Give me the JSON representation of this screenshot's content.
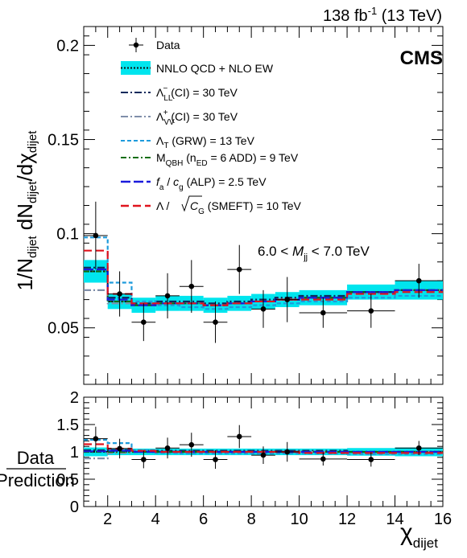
{
  "header": {
    "lumi_prefix": "138 fb",
    "lumi_exp": "-1",
    "lumi_suffix": " (13 TeV)",
    "experiment": "CMS"
  },
  "chart_data": [
    {
      "panel": "main",
      "type": "line",
      "ylabel_parts": [
        "1/N",
        "dijet",
        " dN",
        "dijet",
        "/dχ",
        "dijet"
      ],
      "ylim": [
        0.02,
        0.21
      ],
      "yticks": [
        0.05,
        0.1,
        0.15,
        0.2
      ],
      "ytick_labels": [
        "0.05",
        "0.1",
        "0.15",
        "0.2"
      ],
      "xlim": [
        1,
        16
      ],
      "bins": [
        [
          1,
          2
        ],
        [
          2,
          3
        ],
        [
          3,
          4
        ],
        [
          4,
          5
        ],
        [
          5,
          6
        ],
        [
          6,
          7
        ],
        [
          7,
          8
        ],
        [
          8,
          9
        ],
        [
          9,
          10
        ],
        [
          10,
          12
        ],
        [
          12,
          14
        ],
        [
          14,
          16
        ]
      ],
      "annotation": "6.0 < M jj < 7.0 TeV",
      "data": {
        "name": "Data",
        "x": [
          1.5,
          2.5,
          3.5,
          4.5,
          5.5,
          6.5,
          7.5,
          8.5,
          9.5,
          11,
          13,
          15
        ],
        "y": [
          0.099,
          0.068,
          0.053,
          0.067,
          0.072,
          0.053,
          0.081,
          0.06,
          0.065,
          0.058,
          0.059,
          0.075
        ],
        "yerr": [
          0.018,
          0.012,
          0.01,
          0.012,
          0.014,
          0.011,
          0.013,
          0.01,
          0.012,
          0.008,
          0.009,
          0.009
        ]
      },
      "prediction": {
        "name": "NNLO QCD + NLO EW",
        "values": [
          0.08,
          0.064,
          0.062,
          0.063,
          0.063,
          0.062,
          0.063,
          0.064,
          0.065,
          0.066,
          0.069,
          0.07
        ],
        "band": [
          0.006,
          0.004,
          0.004,
          0.004,
          0.004,
          0.004,
          0.004,
          0.004,
          0.004,
          0.004,
          0.004,
          0.005
        ]
      },
      "signals": [
        {
          "name": "Λ LL − (CI) = 30 TeV",
          "color": "#0b2a5c",
          "dash": "9,3,2,3",
          "values": [
            0.082,
            0.066,
            0.063,
            0.064,
            0.064,
            0.063,
            0.064,
            0.065,
            0.066,
            0.067,
            0.069,
            0.07
          ]
        },
        {
          "name": "Λ VV + (CI) = 30 TeV",
          "color": "#7f8ea9",
          "dash": "9,3,2,3",
          "values": [
            0.07,
            0.063,
            0.062,
            0.063,
            0.063,
            0.062,
            0.063,
            0.064,
            0.065,
            0.066,
            0.068,
            0.07
          ]
        },
        {
          "name": "Λ T (GRW) = 13 TeV",
          "color": "#1e9bdc",
          "dash": "5,3",
          "values": [
            0.098,
            0.074,
            0.064,
            0.062,
            0.061,
            0.06,
            0.061,
            0.062,
            0.063,
            0.064,
            0.066,
            0.067
          ]
        },
        {
          "name": "M QBH (n ED = 6 ADD) = 9 TeV",
          "color": "#0e6e0e",
          "dash": "7,3,2,3",
          "values": [
            0.08,
            0.064,
            0.062,
            0.063,
            0.063,
            0.062,
            0.063,
            0.064,
            0.065,
            0.066,
            0.069,
            0.07
          ]
        },
        {
          "name": "f a / c g (ALP) = 2.5 TeV",
          "color": "#1a1adc",
          "dash": "12,4",
          "values": [
            0.081,
            0.065,
            0.062,
            0.063,
            0.063,
            0.062,
            0.063,
            0.064,
            0.065,
            0.066,
            0.069,
            0.07
          ]
        },
        {
          "name": "Λ / √C G (SMEFT) = 10 TeV",
          "color": "#e0141e",
          "dash": "10,5",
          "values": [
            0.091,
            0.068,
            0.063,
            0.063,
            0.063,
            0.062,
            0.063,
            0.064,
            0.065,
            0.065,
            0.068,
            0.069
          ]
        }
      ],
      "legend_position": "top-left"
    },
    {
      "panel": "ratio",
      "type": "line",
      "ylabel_top": "Data",
      "ylabel_bottom": "Prediction",
      "xlabel": "χ",
      "xlabel_sub": "dijet",
      "ylim": [
        0,
        2
      ],
      "yticks": [
        0,
        0.5,
        1,
        1.5,
        2
      ],
      "ytick_labels": [
        "0",
        "0.5",
        "1",
        "1.5",
        "2"
      ],
      "xlim": [
        1,
        16
      ],
      "xticks": [
        2,
        4,
        6,
        8,
        10,
        12,
        14,
        16
      ],
      "xtick_labels": [
        "2",
        "4",
        "6",
        "8",
        "10",
        "12",
        "14",
        "16"
      ],
      "data_ratio": {
        "y": [
          1.24,
          1.06,
          0.86,
          1.07,
          1.13,
          0.86,
          1.28,
          0.94,
          1.0,
          0.87,
          0.86,
          1.07
        ],
        "yerr": [
          0.22,
          0.18,
          0.16,
          0.19,
          0.22,
          0.17,
          0.21,
          0.16,
          0.18,
          0.12,
          0.13,
          0.13
        ]
      },
      "prediction_band": [
        0.08,
        0.06,
        0.06,
        0.06,
        0.06,
        0.06,
        0.06,
        0.06,
        0.06,
        0.06,
        0.07,
        0.08
      ],
      "signal_ratios": [
        [
          1.03,
          1.03,
          1.02,
          1.02,
          1.02,
          1.02,
          1.02,
          1.02,
          1.02,
          1.02,
          1.0,
          1.0
        ],
        [
          0.88,
          0.98,
          1.0,
          1.0,
          1.0,
          1.0,
          1.0,
          1.0,
          1.0,
          1.0,
          0.99,
          1.0
        ],
        [
          1.22,
          1.16,
          1.03,
          0.98,
          0.97,
          0.97,
          0.97,
          0.97,
          0.97,
          0.97,
          0.96,
          0.96
        ],
        [
          1.0,
          1.0,
          1.0,
          1.0,
          1.0,
          1.0,
          1.0,
          1.0,
          1.0,
          1.0,
          1.0,
          1.0
        ],
        [
          1.01,
          1.02,
          1.0,
          1.0,
          1.0,
          1.0,
          1.0,
          1.0,
          1.0,
          1.0,
          1.0,
          1.0
        ],
        [
          1.14,
          1.06,
          1.02,
          1.0,
          1.0,
          1.0,
          1.0,
          1.0,
          1.0,
          0.98,
          0.98,
          0.98
        ]
      ]
    }
  ]
}
